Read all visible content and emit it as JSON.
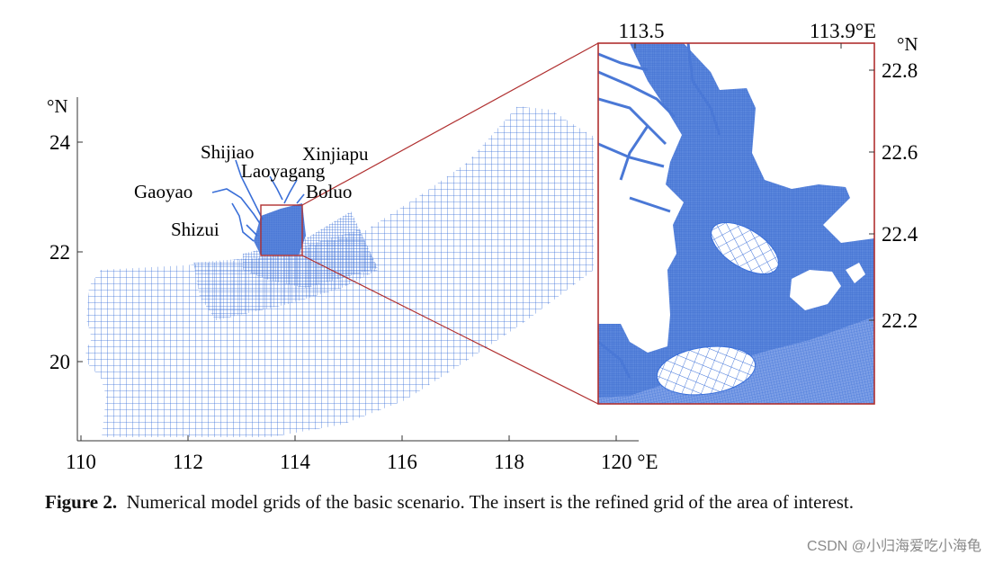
{
  "main_map": {
    "lat_unit": "°N",
    "lat_ticks": [
      "24",
      "22",
      "20"
    ],
    "lon_ticks": [
      "110",
      "112",
      "114",
      "116",
      "118",
      "120 °E"
    ],
    "place_labels": [
      "Shijiao",
      "Xinjiapu",
      "Laoyagang",
      "Gaoyao",
      "Boluo",
      "Shizui"
    ]
  },
  "inset_map": {
    "lon_ticks": [
      "113.5",
      "113.9°E"
    ],
    "lat_unit": "°N",
    "lat_ticks": [
      "22.8",
      "22.6",
      "22.4",
      "22.2"
    ]
  },
  "colors": {
    "grid": "#3a6fd8",
    "frame": "#b03030",
    "axis": "#333333"
  },
  "caption": {
    "label": "Figure 2.",
    "text": "Numerical model grids of the basic scenario.  The insert is the refined grid of the area of interest."
  },
  "watermark": "CSDN @小归海爱吃小海龟"
}
